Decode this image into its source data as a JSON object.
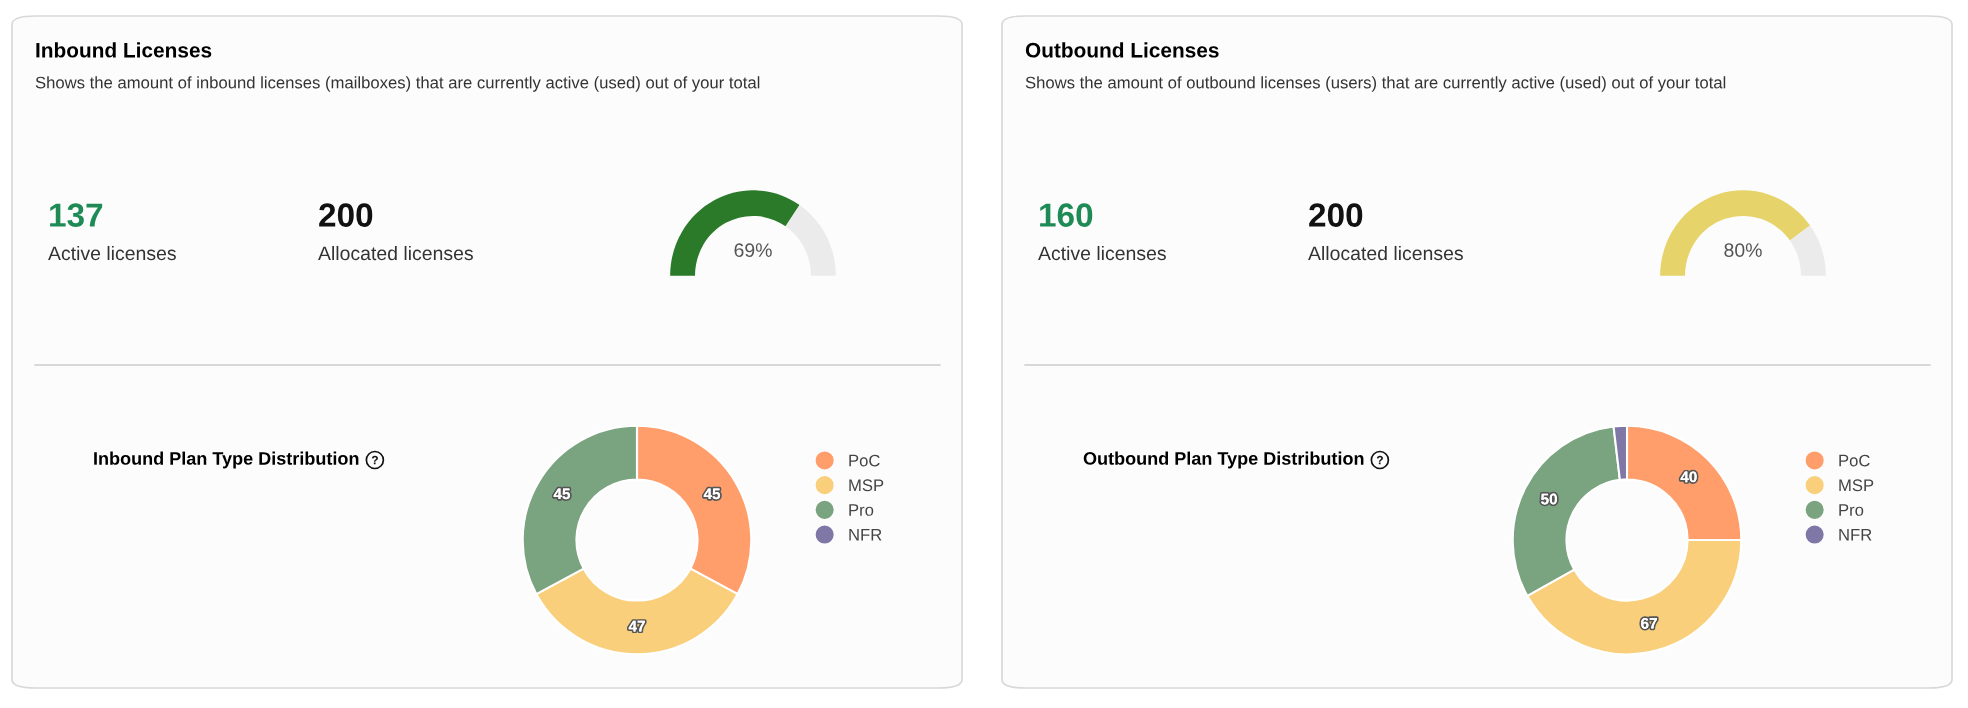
{
  "chart_data": [
    {
      "type": "other",
      "title": "Inbound Licenses",
      "subtitle": "Shows the amount of inbound licenses (mailboxes) that are currently active (used) out of your total",
      "annotations": [
        "137",
        "Active licenses",
        "200",
        "Allocated licenses"
      ]
    },
    {
      "type": "donut",
      "categories": [
        null,
        null
      ],
      "values": [
        69,
        31
      ],
      "colors": [
        "#2a7a2a",
        "#ebebeb"
      ],
      "annotations": [
        "69%"
      ]
    },
    {
      "type": "donut",
      "title": "Inbound Plan Type Distribution",
      "categories": [
        "PoC",
        "MSP",
        "Pro",
        "NFR"
      ],
      "values": [
        45,
        47,
        45,
        0
      ],
      "colors": [
        "#ff9e6b",
        "#f9cf7c",
        "#7aa37f",
        "#7f77a6"
      ],
      "value_labels": [
        "45",
        "47",
        "45",
        null
      ],
      "legend": "right"
    },
    {
      "type": "other",
      "title": "Outbound Licenses",
      "subtitle": "Shows the amount of outbound licenses (users) that are currently active (used) out of your total",
      "annotations": [
        "160",
        "Active licenses",
        "200",
        "Allocated licenses"
      ]
    },
    {
      "type": "donut",
      "categories": [
        null,
        null
      ],
      "values": [
        80,
        20
      ],
      "colors": [
        "#e6d36a",
        "#ebebeb"
      ],
      "annotations": [
        "80%"
      ]
    },
    {
      "type": "donut",
      "title": "Outbound Plan Type Distribution",
      "categories": [
        "PoC",
        "MSP",
        "Pro",
        "NFR"
      ],
      "values": [
        40,
        67,
        50,
        3
      ],
      "colors": [
        "#ff9e6b",
        "#f9cf7c",
        "#7aa37f",
        "#7f77a6"
      ],
      "value_labels": [
        "40",
        "67",
        "50",
        null
      ],
      "legend": "right"
    }
  ]
}
